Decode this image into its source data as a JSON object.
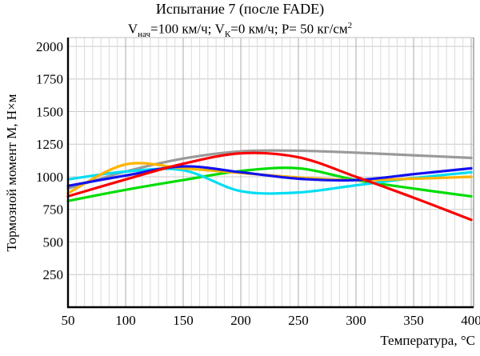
{
  "header": {
    "title": "Испытание 7 (после FADE)",
    "subtitle": {
      "seg1": "V",
      "seg1_sub": "нач",
      "seg2": "=100 км/ч; ",
      "seg3": "V",
      "seg3_sub": "К",
      "seg4": "=0 км/ч; P= 50 кг/см",
      "seg4_sup": "2"
    }
  },
  "chart_data": {
    "type": "line",
    "title": "Испытание 7 (после FADE)",
    "subtitle": "Vнач=100 км/ч; VК=0 км/ч; P= 50 кг/см2",
    "xlabel": "Температура, °C",
    "ylabel": "Тормозной момент М, Н×м",
    "x": [
      50,
      100,
      150,
      200,
      250,
      300,
      350,
      400
    ],
    "x_ticks": [
      "50",
      "100",
      "150",
      "200",
      "250",
      "300",
      "350",
      "400"
    ],
    "y_ticks": [
      250,
      500,
      750,
      1000,
      1250,
      1500,
      1750,
      2000
    ],
    "xlim": [
      50,
      400
    ],
    "ylim": [
      0,
      2050
    ],
    "grid": {
      "vertical_minor_divisions_per_major": 7,
      "horizontal_lines": "major-only"
    },
    "legend": "none",
    "colors": {
      "grid_minor": "#dcdcdc",
      "grid_major": "#ababab",
      "grid_horizontal": "#c8c8c8",
      "axis": "#000000"
    },
    "series": [
      {
        "name": "gray",
        "color": "#9a9a9a",
        "values": [
          910,
          1040,
          1140,
          1195,
          1200,
          1185,
          1165,
          1145
        ]
      },
      {
        "name": "green",
        "color": "#00dd00",
        "values": [
          815,
          900,
          975,
          1045,
          1065,
          975,
          910,
          850
        ]
      },
      {
        "name": "cyan",
        "color": "#00ddf2",
        "values": [
          980,
          1040,
          1050,
          890,
          880,
          935,
          990,
          1035
        ]
      },
      {
        "name": "orange",
        "color": "#ffb300",
        "values": [
          875,
          1095,
          1065,
          1030,
          995,
          975,
          985,
          1000
        ]
      },
      {
        "name": "blue",
        "color": "#1212f0",
        "values": [
          930,
          1010,
          1080,
          1035,
          985,
          975,
          1020,
          1065
        ]
      },
      {
        "name": "red",
        "color": "#fb0000",
        "values": [
          850,
          980,
          1100,
          1180,
          1150,
          1000,
          840,
          670
        ]
      }
    ]
  }
}
